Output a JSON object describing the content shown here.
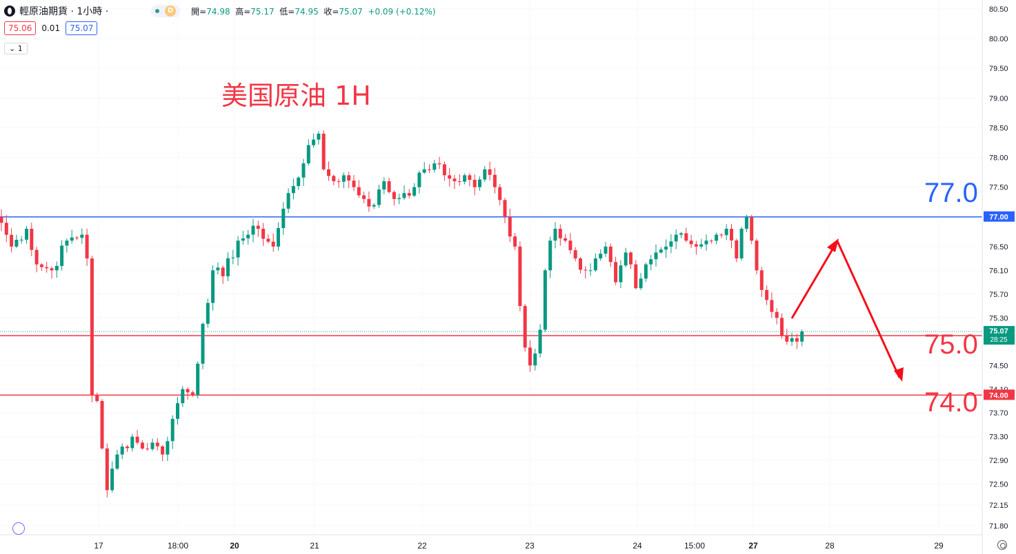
{
  "header": {
    "symbol": "輕原油期貨 · 1小時 ·",
    "status_badge": "D",
    "ohlc": {
      "open_label": "開=",
      "open": "74.98",
      "high_label": "高=",
      "high": "75.17",
      "low_label": "低=",
      "low": "74.95",
      "close_label": "收=",
      "close": "75.07",
      "change": "+0.09 (+0.12%)"
    },
    "bid": "75.06",
    "spread": "0.01",
    "ask": "75.07",
    "collapse_label": "⌄ 1"
  },
  "annotations": {
    "title": "美国原油 1H",
    "level_77": "77.0",
    "level_75": "75.0",
    "level_74": "74.0"
  },
  "colors": {
    "up": "#089981",
    "down": "#f23645",
    "blue_line": "#2962ff",
    "red_line": "#f23645",
    "arrow": "#f70d1a"
  },
  "chart_data": {
    "type": "candlestick",
    "ylim": [
      71.65,
      80.65
    ],
    "y_ticks": [
      "80.50",
      "80.00",
      "79.50",
      "79.00",
      "78.50",
      "78.00",
      "77.50",
      "77.00",
      "76.50",
      "76.10",
      "75.70",
      "75.30",
      "74.50",
      "74.10",
      "73.70",
      "73.30",
      "72.90",
      "72.50",
      "72.15",
      "71.80"
    ],
    "x_ticks": [
      "17",
      "18:00",
      "20",
      "21",
      "22",
      "23",
      "24",
      "15:00",
      "27",
      "28",
      "29"
    ],
    "x_ticks_bold": [
      "20",
      "27"
    ],
    "horizontal_lines": [
      {
        "price": 77.0,
        "color": "#2962ff",
        "label": "77.00"
      },
      {
        "price": 75.0,
        "color": "#f23645",
        "label": "75.00"
      },
      {
        "price": 74.0,
        "color": "#f23645",
        "label": "74.00"
      }
    ],
    "current_price": {
      "price": 75.07,
      "label": "75.07",
      "countdown": "28:25"
    },
    "anchor_points": [
      [
        0,
        76.9
      ],
      [
        2,
        76.5
      ],
      [
        5,
        76.8
      ],
      [
        7,
        76.2
      ],
      [
        10,
        76.1
      ],
      [
        13,
        76.6
      ],
      [
        16,
        76.7
      ],
      [
        17,
        76.3
      ],
      [
        18,
        74.0
      ],
      [
        19,
        73.9
      ],
      [
        21,
        72.4
      ],
      [
        23,
        73.0
      ],
      [
        26,
        73.3
      ],
      [
        28,
        73.1
      ],
      [
        30,
        73.2
      ],
      [
        32,
        73.0
      ],
      [
        34,
        73.6
      ],
      [
        36,
        74.1
      ],
      [
        38,
        74.0
      ],
      [
        40,
        75.2
      ],
      [
        42,
        76.1
      ],
      [
        44,
        76.0
      ],
      [
        47,
        76.6
      ],
      [
        49,
        76.7
      ],
      [
        51,
        76.8
      ],
      [
        54,
        76.5
      ],
      [
        57,
        77.4
      ],
      [
        60,
        77.9
      ],
      [
        62,
        78.3
      ],
      [
        63,
        78.4
      ],
      [
        64,
        77.8
      ],
      [
        66,
        77.6
      ],
      [
        68,
        77.7
      ],
      [
        70,
        77.5
      ],
      [
        72,
        77.3
      ],
      [
        74,
        77.2
      ],
      [
        76,
        77.6
      ],
      [
        78,
        77.3
      ],
      [
        80,
        77.4
      ],
      [
        82,
        77.5
      ],
      [
        84,
        77.8
      ],
      [
        86,
        77.9
      ],
      [
        88,
        77.7
      ],
      [
        90,
        77.6
      ],
      [
        92,
        77.7
      ],
      [
        94,
        77.5
      ],
      [
        96,
        77.8
      ],
      [
        98,
        77.5
      ],
      [
        100,
        77.0
      ],
      [
        102,
        76.5
      ],
      [
        103,
        75.5
      ],
      [
        104,
        74.8
      ],
      [
        105,
        74.5
      ],
      [
        106,
        74.7
      ],
      [
        107,
        75.1
      ],
      [
        108,
        76.1
      ],
      [
        109,
        76.6
      ],
      [
        110,
        76.8
      ],
      [
        112,
        76.6
      ],
      [
        114,
        76.3
      ],
      [
        116,
        76.1
      ],
      [
        118,
        76.3
      ],
      [
        120,
        76.5
      ],
      [
        122,
        75.9
      ],
      [
        124,
        76.4
      ],
      [
        126,
        75.8
      ],
      [
        128,
        76.2
      ],
      [
        130,
        76.4
      ],
      [
        132,
        76.5
      ],
      [
        134,
        76.7
      ],
      [
        136,
        76.6
      ],
      [
        138,
        76.5
      ],
      [
        140,
        76.6
      ],
      [
        142,
        76.7
      ],
      [
        144,
        76.8
      ],
      [
        146,
        76.3
      ],
      [
        147,
        76.8
      ],
      [
        148,
        77.0
      ],
      [
        149,
        76.6
      ],
      [
        150,
        76.1
      ],
      [
        152,
        75.6
      ],
      [
        154,
        75.3
      ],
      [
        155,
        75.0
      ],
      [
        156,
        74.9
      ],
      [
        158,
        74.9
      ],
      [
        159,
        75.07
      ]
    ]
  }
}
